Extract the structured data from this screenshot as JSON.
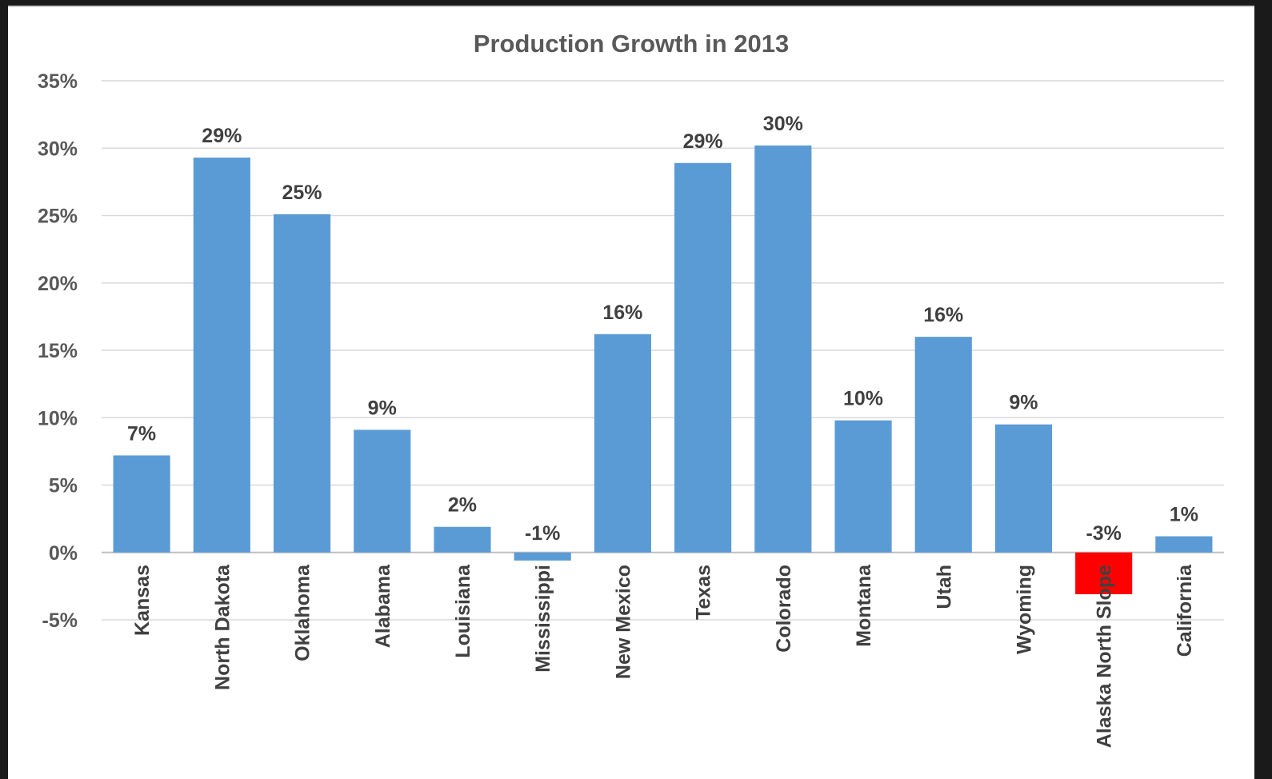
{
  "chart_data": {
    "type": "bar",
    "title": "Production Growth in 2013",
    "xlabel": "",
    "ylabel": "",
    "ylim": [
      -5,
      35
    ],
    "yticks": [
      35,
      30,
      25,
      20,
      15,
      10,
      5,
      0,
      -5
    ],
    "ytick_labels": [
      "35%",
      "30%",
      "25%",
      "20%",
      "15%",
      "10%",
      "5%",
      "0%",
      "-5%"
    ],
    "grid": true,
    "legend": "none",
    "categories": [
      "Kansas",
      "North Dakota",
      "Oklahoma",
      "Alabama",
      "Louisiana",
      "Mississippi",
      "New Mexico",
      "Texas",
      "Colorado",
      "Montana",
      "Utah",
      "Wyoming",
      "Alaska North Slope",
      "California"
    ],
    "values": [
      7.2,
      29.3,
      25.1,
      9.1,
      1.9,
      -0.6,
      16.2,
      28.9,
      30.2,
      9.8,
      16.0,
      9.5,
      -3.1,
      1.2
    ],
    "data_labels": [
      "7%",
      "29%",
      "25%",
      "9%",
      "2%",
      "-1%",
      "16%",
      "29%",
      "30%",
      "10%",
      "16%",
      "9%",
      "-3%",
      "1%"
    ],
    "colors": {
      "default_bar": "#5b9bd5",
      "highlight_bar": "#ff0000",
      "gridline": "#d9d9d9",
      "text": "#595959"
    },
    "highlight_category": "Alaska North Slope"
  }
}
